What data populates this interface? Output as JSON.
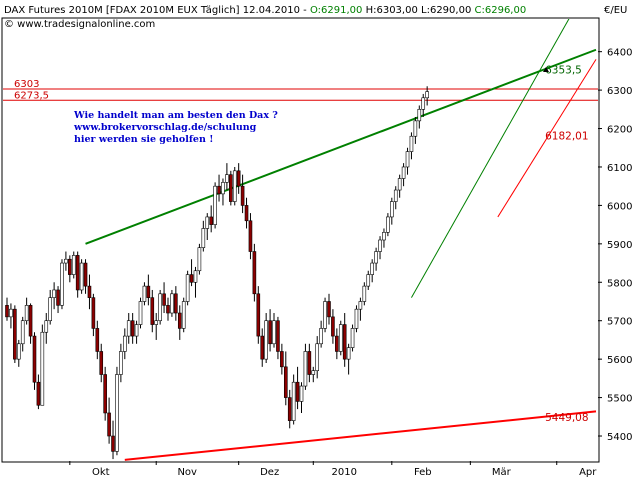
{
  "header": {
    "instrument": "DAX Futures 2010M [FDAX 2010M EUX  Täglich] 12.04.2010 - ",
    "open": "O:6291,00",
    "high": "H:6303,00",
    "low": "L:6290,00",
    "close": "C:6296,00",
    "copyright": "© www.tradesignalonline.com",
    "unit": "€/EU"
  },
  "colors": {
    "bull": "#ffffff",
    "bear": "#8b0000",
    "wick": "#000000",
    "green_line": "#008000",
    "red_line": "#ff0000",
    "label_red": "#cc0000",
    "label_green": "#006400",
    "annotation": "#0000cc",
    "hline": "#e00000"
  },
  "annotation": [
    "Wie handelt man am besten den Dax ?",
    "www.brokervorschlag.de/schulung",
    "hier werden sie geholfen !"
  ],
  "chart_data": {
    "type": "candlestick",
    "y_ticks": [
      5400,
      5500,
      5600,
      5700,
      5800,
      5900,
      6000,
      6100,
      6200,
      6300,
      6400
    ],
    "y_tick_labels": [
      "5400",
      "5500",
      "5600",
      "5700",
      "5800",
      "5900",
      "6000",
      "6100",
      "6200",
      "6300",
      "6400"
    ],
    "ylim": [
      5335,
      6485
    ],
    "xlim": [
      0,
      150
    ],
    "x_ticks": [
      {
        "label": "Okt",
        "i": 16
      },
      {
        "label": "Nov",
        "i": 38
      },
      {
        "label": "Dez",
        "i": 59
      },
      {
        "label": "2010",
        "i": 78
      },
      {
        "label": "Feb",
        "i": 98
      },
      {
        "label": "Mär",
        "i": 118
      },
      {
        "label": "Apr",
        "i": 140
      }
    ],
    "levels": [
      {
        "label": "6303",
        "value": 6303
      },
      {
        "label": "6273,5",
        "value": 6273.5
      }
    ],
    "trendlines": [
      {
        "name": "green-upper",
        "color": "green",
        "x1": 20,
        "y1": 5900,
        "x2": 150,
        "y2": 6405
      },
      {
        "name": "green-channel",
        "color": "green",
        "x1": 103,
        "y1": 5760,
        "x2": 150,
        "y2": 6610
      },
      {
        "name": "red-lower",
        "color": "red",
        "x1": 30,
        "y1": 5338,
        "x2": 150,
        "y2": 5464
      },
      {
        "name": "red-channel",
        "color": "red",
        "x1": 125,
        "y1": 5970,
        "x2": 150,
        "y2": 6380
      }
    ],
    "value_labels": [
      {
        "text": "6353,5",
        "i": 135,
        "value": 6353.5,
        "color": "green"
      },
      {
        "text": "6182,01",
        "i": 135,
        "value": 6182.01,
        "color": "red"
      },
      {
        "text": "5449,08",
        "i": 135,
        "value": 5449.08,
        "color": "red"
      }
    ],
    "candles": [
      [
        5740,
        5760,
        5700,
        5710
      ],
      [
        5710,
        5745,
        5680,
        5730
      ],
      [
        5730,
        5740,
        5590,
        5600
      ],
      [
        5600,
        5650,
        5580,
        5640
      ],
      [
        5640,
        5710,
        5620,
        5700
      ],
      [
        5700,
        5760,
        5690,
        5740
      ],
      [
        5740,
        5745,
        5640,
        5660
      ],
      [
        5660,
        5670,
        5520,
        5540
      ],
      [
        5540,
        5560,
        5470,
        5480
      ],
      [
        5480,
        5690,
        5480,
        5670
      ],
      [
        5670,
        5720,
        5640,
        5700
      ],
      [
        5700,
        5780,
        5690,
        5760
      ],
      [
        5760,
        5800,
        5730,
        5780
      ],
      [
        5780,
        5790,
        5720,
        5740
      ],
      [
        5740,
        5860,
        5730,
        5850
      ],
      [
        5850,
        5880,
        5830,
        5860
      ],
      [
        5860,
        5870,
        5800,
        5820
      ],
      [
        5820,
        5880,
        5810,
        5870
      ],
      [
        5870,
        5880,
        5760,
        5780
      ],
      [
        5780,
        5860,
        5770,
        5850
      ],
      [
        5850,
        5860,
        5770,
        5790
      ],
      [
        5790,
        5820,
        5730,
        5760
      ],
      [
        5760,
        5770,
        5660,
        5680
      ],
      [
        5680,
        5700,
        5600,
        5620
      ],
      [
        5620,
        5640,
        5540,
        5560
      ],
      [
        5560,
        5580,
        5440,
        5460
      ],
      [
        5460,
        5500,
        5380,
        5400
      ],
      [
        5400,
        5440,
        5340,
        5360
      ],
      [
        5360,
        5580,
        5350,
        5560
      ],
      [
        5560,
        5640,
        5540,
        5620
      ],
      [
        5620,
        5680,
        5600,
        5660
      ],
      [
        5660,
        5720,
        5640,
        5700
      ],
      [
        5700,
        5720,
        5640,
        5660
      ],
      [
        5660,
        5700,
        5640,
        5690
      ],
      [
        5690,
        5760,
        5680,
        5750
      ],
      [
        5750,
        5800,
        5740,
        5790
      ],
      [
        5790,
        5820,
        5740,
        5760
      ],
      [
        5760,
        5780,
        5670,
        5690
      ],
      [
        5690,
        5720,
        5650,
        5700
      ],
      [
        5700,
        5780,
        5690,
        5770
      ],
      [
        5770,
        5800,
        5720,
        5740
      ],
      [
        5740,
        5760,
        5700,
        5720
      ],
      [
        5720,
        5780,
        5710,
        5770
      ],
      [
        5770,
        5790,
        5700,
        5720
      ],
      [
        5720,
        5740,
        5650,
        5680
      ],
      [
        5680,
        5760,
        5670,
        5750
      ],
      [
        5750,
        5830,
        5740,
        5820
      ],
      [
        5820,
        5860,
        5790,
        5800
      ],
      [
        5800,
        5840,
        5760,
        5830
      ],
      [
        5830,
        5900,
        5820,
        5890
      ],
      [
        5890,
        5960,
        5880,
        5940
      ],
      [
        5940,
        5980,
        5910,
        5970
      ],
      [
        5970,
        6000,
        5930,
        5950
      ],
      [
        5950,
        6060,
        5940,
        6050
      ],
      [
        6050,
        6080,
        6010,
        6030
      ],
      [
        6030,
        6070,
        6000,
        6060
      ],
      [
        6060,
        6110,
        6040,
        6080
      ],
      [
        6080,
        6090,
        6000,
        6010
      ],
      [
        6010,
        6100,
        6000,
        6090
      ],
      [
        6090,
        6110,
        6030,
        6050
      ],
      [
        6050,
        6080,
        5980,
        6000
      ],
      [
        6000,
        6020,
        5940,
        5960
      ],
      [
        5960,
        5980,
        5860,
        5880
      ],
      [
        5880,
        5900,
        5750,
        5770
      ],
      [
        5770,
        5790,
        5640,
        5660
      ],
      [
        5660,
        5680,
        5580,
        5600
      ],
      [
        5600,
        5720,
        5590,
        5700
      ],
      [
        5700,
        5730,
        5620,
        5640
      ],
      [
        5640,
        5720,
        5630,
        5700
      ],
      [
        5700,
        5710,
        5600,
        5620
      ],
      [
        5620,
        5640,
        5560,
        5580
      ],
      [
        5580,
        5620,
        5480,
        5500
      ],
      [
        5500,
        5520,
        5420,
        5440
      ],
      [
        5440,
        5560,
        5430,
        5540
      ],
      [
        5540,
        5580,
        5470,
        5490
      ],
      [
        5490,
        5540,
        5460,
        5530
      ],
      [
        5530,
        5640,
        5520,
        5620
      ],
      [
        5620,
        5640,
        5540,
        5560
      ],
      [
        5560,
        5580,
        5540,
        5570
      ],
      [
        5570,
        5660,
        5550,
        5640
      ],
      [
        5640,
        5700,
        5630,
        5680
      ],
      [
        5680,
        5760,
        5670,
        5750
      ],
      [
        5750,
        5770,
        5690,
        5710
      ],
      [
        5710,
        5730,
        5640,
        5660
      ],
      [
        5660,
        5680,
        5600,
        5620
      ],
      [
        5620,
        5700,
        5610,
        5690
      ],
      [
        5690,
        5720,
        5580,
        5600
      ],
      [
        5600,
        5640,
        5560,
        5630
      ],
      [
        5630,
        5690,
        5620,
        5680
      ],
      [
        5680,
        5740,
        5670,
        5730
      ],
      [
        5730,
        5760,
        5700,
        5750
      ],
      [
        5750,
        5800,
        5740,
        5790
      ],
      [
        5790,
        5830,
        5780,
        5820
      ],
      [
        5820,
        5860,
        5800,
        5850
      ],
      [
        5850,
        5890,
        5830,
        5880
      ],
      [
        5880,
        5920,
        5860,
        5910
      ],
      [
        5910,
        5940,
        5890,
        5930
      ],
      [
        5930,
        5980,
        5920,
        5970
      ],
      [
        5970,
        6020,
        5950,
        6010
      ],
      [
        6010,
        6050,
        5990,
        6040
      ],
      [
        6040,
        6080,
        6020,
        6070
      ],
      [
        6070,
        6110,
        6050,
        6100
      ],
      [
        6100,
        6150,
        6080,
        6140
      ],
      [
        6140,
        6190,
        6120,
        6180
      ],
      [
        6180,
        6230,
        6160,
        6220
      ],
      [
        6220,
        6260,
        6200,
        6250
      ],
      [
        6250,
        6290,
        6230,
        6280
      ],
      [
        6280,
        6310,
        6260,
        6296
      ]
    ]
  }
}
